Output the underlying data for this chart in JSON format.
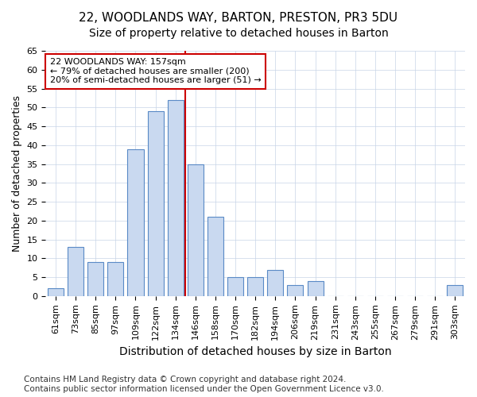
{
  "title": "22, WOODLANDS WAY, BARTON, PRESTON, PR3 5DU",
  "subtitle": "Size of property relative to detached houses in Barton",
  "xlabel": "Distribution of detached houses by size in Barton",
  "ylabel": "Number of detached properties",
  "categories": [
    "61sqm",
    "73sqm",
    "85sqm",
    "97sqm",
    "109sqm",
    "122sqm",
    "134sqm",
    "146sqm",
    "158sqm",
    "170sqm",
    "182sqm",
    "194sqm",
    "206sqm",
    "219sqm",
    "231sqm",
    "243sqm",
    "255sqm",
    "267sqm",
    "279sqm",
    "291sqm",
    "303sqm"
  ],
  "values": [
    2,
    13,
    9,
    9,
    39,
    49,
    52,
    35,
    21,
    5,
    5,
    7,
    3,
    4,
    0,
    0,
    0,
    0,
    0,
    0,
    3
  ],
  "bar_color": "#c9d9f0",
  "bar_edge_color": "#5a8ac6",
  "vline_x_index": 7,
  "vline_color": "#cc0000",
  "annotation_line1": "22 WOODLANDS WAY: 157sqm",
  "annotation_line2": "← 79% of detached houses are smaller (200)",
  "annotation_line3": "20% of semi-detached houses are larger (51) →",
  "annotation_box_color": "#ffffff",
  "annotation_box_edge_color": "#cc0000",
  "ylim": [
    0,
    65
  ],
  "yticks": [
    0,
    5,
    10,
    15,
    20,
    25,
    30,
    35,
    40,
    45,
    50,
    55,
    60,
    65
  ],
  "background_color": "#ffffff",
  "grid_color": "#c8d4e8",
  "footer_line1": "Contains HM Land Registry data © Crown copyright and database right 2024.",
  "footer_line2": "Contains public sector information licensed under the Open Government Licence v3.0.",
  "title_fontsize": 11,
  "subtitle_fontsize": 10,
  "xlabel_fontsize": 10,
  "ylabel_fontsize": 9,
  "tick_fontsize": 8,
  "annotation_fontsize": 8,
  "footer_fontsize": 7.5
}
